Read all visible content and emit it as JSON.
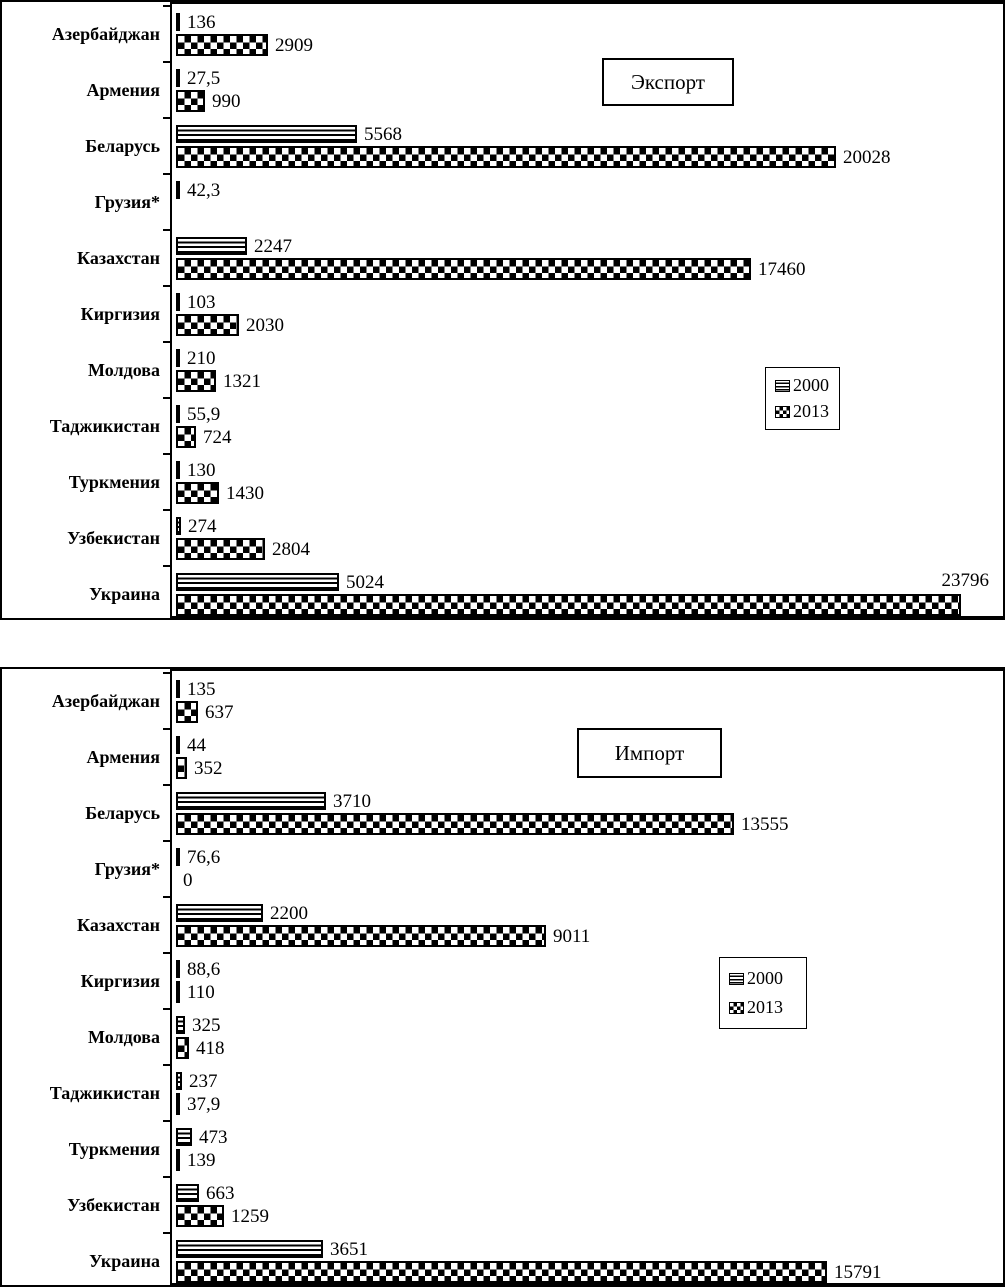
{
  "figure": {
    "colors": {
      "foreground": "#000000",
      "background": "#ffffff"
    },
    "charts": [
      {
        "title": "Экспорт",
        "legend": [
          "2000",
          "2013"
        ],
        "chart_data": {
          "type": "bar",
          "orientation": "horizontal",
          "title": "Экспорт",
          "categories": [
            "Азербайджан",
            "Армения",
            "Беларусь",
            "Грузия*",
            "Казахстан",
            "Киргизия",
            "Молдова",
            "Таджикистан",
            "Туркмения",
            "Узбекистан",
            "Украина"
          ],
          "series": [
            {
              "name": "2000",
              "pattern": "horizontal-lines",
              "values": [
                136,
                27.5,
                5568,
                42.3,
                2247,
                103,
                210,
                55.9,
                130,
                274,
                5024
              ],
              "labels": [
                "136",
                "27,5",
                "5568",
                "42,3",
                "2247",
                "103",
                "210",
                "55,9",
                "130",
                "274",
                "5024"
              ]
            },
            {
              "name": "2013",
              "pattern": "checkerboard",
              "values": [
                2909,
                990,
                20028,
                null,
                17460,
                2030,
                1321,
                724,
                1430,
                2804,
                23796
              ],
              "labels": [
                "2909",
                "990",
                "20028",
                "",
                "17460",
                "2030",
                "1321",
                "724",
                "1430",
                "2804",
                "23796"
              ],
              "label_above": [
                10
              ]
            }
          ],
          "xlim": [
            0,
            25000
          ],
          "grid": false,
          "value_labels": "outside-end",
          "legend_position": "middle-right"
        }
      },
      {
        "title": "Импорт",
        "legend": [
          "2000",
          "2013"
        ],
        "chart_data": {
          "type": "bar",
          "orientation": "horizontal",
          "title": "Импорт",
          "categories": [
            "Азербайджан",
            "Армения",
            "Беларусь",
            "Грузия*",
            "Казахстан",
            "Киргизия",
            "Молдова",
            "Таджикистан",
            "Туркмения",
            "Узбекистан",
            "Украина"
          ],
          "series": [
            {
              "name": "2000",
              "pattern": "horizontal-lines",
              "values": [
                135,
                44,
                3710,
                76.6,
                2200,
                88.6,
                325,
                237,
                473,
                663,
                3651
              ],
              "labels": [
                "135",
                "44",
                "3710",
                "76,6",
                "2200",
                "88,6",
                "325",
                "237",
                "473",
                "663",
                "3651"
              ]
            },
            {
              "name": "2013",
              "pattern": "checkerboard",
              "values": [
                637,
                352,
                13555,
                0,
                9011,
                110,
                418,
                37.9,
                139,
                1259,
                15791
              ],
              "labels": [
                "637",
                "352",
                "13555",
                "0",
                "9011",
                "110",
                "418",
                "37,9",
                "139",
                "1259",
                "15791"
              ],
              "label_above": []
            }
          ],
          "xlim": [
            0,
            20000
          ],
          "grid": false,
          "value_labels": "outside-end",
          "legend_position": "middle-right"
        }
      }
    ]
  }
}
